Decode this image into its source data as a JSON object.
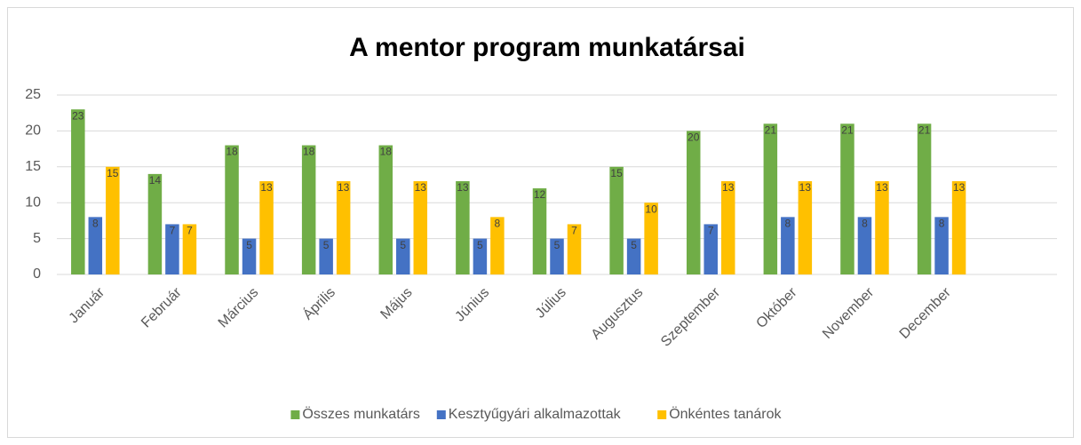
{
  "chart_data": {
    "type": "bar",
    "title": "A mentor program munkatársai",
    "categories": [
      "Január",
      "Február",
      "Március",
      "Április",
      "Május",
      "Június",
      "Július",
      "Augusztus",
      "Szeptember",
      "Október",
      "November",
      "December",
      null
    ],
    "series": [
      {
        "name": "Összes munkatárs",
        "color": "#70ad47",
        "values": [
          23,
          14,
          18,
          18,
          18,
          13,
          12,
          15,
          20,
          21,
          21,
          21,
          null
        ]
      },
      {
        "name": "Kesztyűgyári alkalmazottak",
        "color": "#4472c4",
        "values": [
          8,
          7,
          5,
          5,
          5,
          5,
          5,
          5,
          7,
          8,
          8,
          8,
          null
        ]
      },
      {
        "name": "Önkéntes tanárok",
        "color": "#ffc000",
        "values": [
          15,
          7,
          13,
          13,
          13,
          8,
          7,
          10,
          13,
          13,
          13,
          13,
          null
        ]
      }
    ],
    "ylim": [
      0,
      25
    ],
    "yticks": [
      0,
      5,
      10,
      15,
      20,
      25
    ],
    "grid": true,
    "legend": "bottom"
  }
}
